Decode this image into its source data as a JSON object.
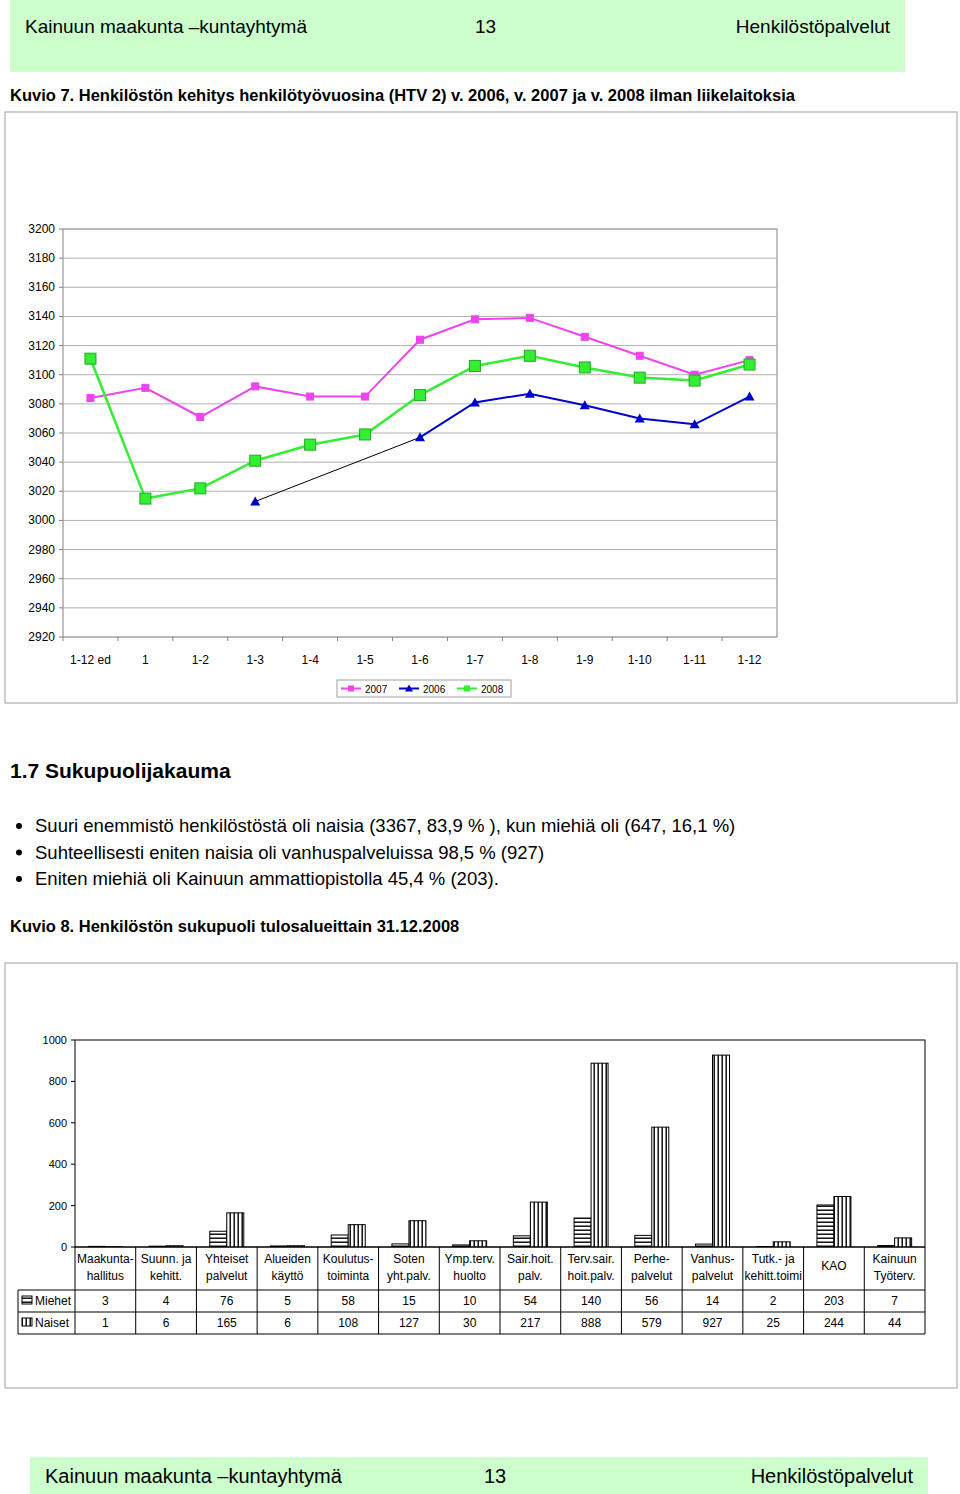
{
  "header": {
    "left": "Kainuun maakunta –kuntayhtymä",
    "page": "13",
    "right": "Henkilöstöpalvelut"
  },
  "figure7_caption": "Kuvio 7. Henkilöstön kehitys henkilötyövuosina (HTV 2) v. 2006, v. 2007 ja v. 2008 ilman liikelaitoksia",
  "section": {
    "heading": "1.7 Sukupuolijakauma",
    "bullets": [
      "Suuri enemmistö henkilöstöstä oli naisia (3367, 83,9 % ), kun miehiä oli (647, 16,1 %)",
      "Suhteellisesti eniten naisia oli vanhuspalveluissa 98,5 % (927)",
      "Eniten miehiä oli Kainuun ammattiopistolla 45,4 % (203)."
    ]
  },
  "figure8_caption": "Kuvio 8. Henkilöstön sukupuoli tulosalueittain 31.12.2008",
  "footer": {
    "left": "Kainuun maakunta –kuntayhtymä",
    "page": "13",
    "right": "Henkilöstöpalvelut"
  },
  "chart_data": [
    {
      "type": "line",
      "categories": [
        "1-12 ed",
        "1",
        "1-2",
        "1-3",
        "1-4",
        "1-5",
        "1-6",
        "1-7",
        "1-8",
        "1-9",
        "1-10",
        "1-11",
        "1-12"
      ],
      "series": [
        {
          "name": "2007",
          "color": "#ee44ee",
          "marker": "square",
          "values": [
            3084,
            3091,
            3071,
            3092,
            3085,
            3085,
            3124,
            3138,
            3139,
            3126,
            3113,
            3100,
            3110
          ]
        },
        {
          "name": "2006",
          "color": "#0000cc",
          "marker": "triangle",
          "values": [
            null,
            null,
            null,
            3013,
            null,
            null,
            3057,
            3081,
            3087,
            3079,
            3070,
            3066,
            3085
          ]
        },
        {
          "name": "2008",
          "color": "#33ee33",
          "marker": "square",
          "values": [
            3111,
            3015,
            3022,
            3041,
            3052,
            3059,
            3086,
            3106,
            3113,
            3105,
            3098,
            3096,
            3107
          ]
        }
      ],
      "ylim": [
        2920,
        3200
      ],
      "yticks": [
        2920,
        2940,
        2960,
        2980,
        3000,
        3020,
        3040,
        3060,
        3080,
        3100,
        3120,
        3140,
        3160,
        3180,
        3200
      ],
      "grid": true,
      "legend": "bottom"
    },
    {
      "type": "bar",
      "categories": [
        "Maakunta-\nhallitus",
        "Suunn. ja\nkehitt.",
        "Yhteiset\npalvelut",
        "Alueiden\nkäyttö",
        "Koulutus-\ntoiminta",
        "Soten\nyht.palv.",
        "Ymp.terv.\nhuolto",
        "Sair.hoit.\npalv.",
        "Terv.sair.\nhoit.palv.",
        "Perhe-\npalvelut",
        "Vanhus-\npalvelut",
        "Tutk.- ja\nkehitt.toimi",
        "KAO",
        "Kainuun\nTyöterv."
      ],
      "series": [
        {
          "name": "Miehet",
          "color": "#000000",
          "values": [
            3,
            4,
            76,
            5,
            58,
            15,
            10,
            54,
            140,
            56,
            14,
            2,
            203,
            7
          ]
        },
        {
          "name": "Naiset",
          "color": "#000000",
          "values": [
            1,
            6,
            165,
            6,
            108,
            127,
            30,
            217,
            888,
            579,
            927,
            25,
            244,
            44
          ]
        }
      ],
      "ylim": [
        0,
        1000
      ],
      "yticks": [
        0,
        200,
        400,
        600,
        800,
        1000
      ],
      "grid": false
    }
  ]
}
